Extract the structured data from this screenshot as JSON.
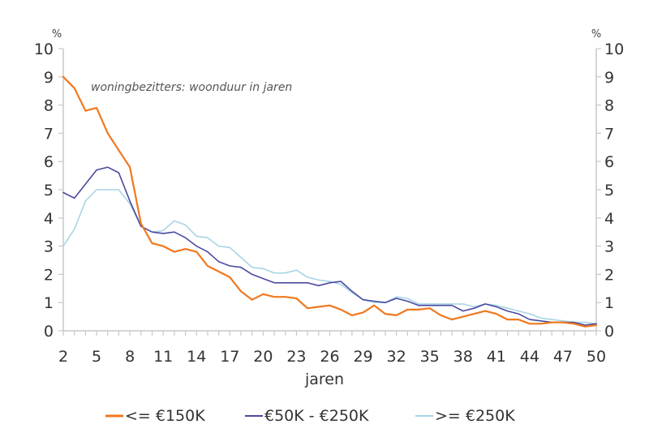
{
  "chart_data": {
    "type": "line",
    "annotation": "woningbezitters: woonduur in jaren",
    "xlabel": "jaren",
    "y_unit_left": "%",
    "y_unit_right": "%",
    "ylim": [
      0,
      10
    ],
    "xlim": [
      2,
      50
    ],
    "y_ticks": [
      0,
      1,
      2,
      3,
      4,
      5,
      6,
      7,
      8,
      9,
      10
    ],
    "x_ticks": [
      2,
      5,
      8,
      11,
      14,
      17,
      20,
      23,
      26,
      29,
      32,
      35,
      38,
      41,
      44,
      47,
      50
    ],
    "grid": false,
    "legend_position": "bottom",
    "x": [
      2,
      3,
      4,
      5,
      6,
      7,
      8,
      9,
      10,
      11,
      12,
      13,
      14,
      15,
      16,
      17,
      18,
      19,
      20,
      21,
      22,
      23,
      24,
      25,
      26,
      27,
      28,
      29,
      30,
      31,
      32,
      33,
      34,
      35,
      36,
      37,
      38,
      39,
      40,
      41,
      42,
      43,
      44,
      45,
      46,
      47,
      48,
      49,
      50
    ],
    "series": [
      {
        "name": "<= €150K",
        "color": "#f0781e",
        "values": [
          9.0,
          8.6,
          7.8,
          7.9,
          7.0,
          6.4,
          5.8,
          3.8,
          3.1,
          3.0,
          2.8,
          2.9,
          2.8,
          2.3,
          2.1,
          1.9,
          1.4,
          1.1,
          1.3,
          1.2,
          1.2,
          1.15,
          0.8,
          0.85,
          0.9,
          0.75,
          0.55,
          0.65,
          0.9,
          0.6,
          0.55,
          0.75,
          0.75,
          0.8,
          0.55,
          0.4,
          0.5,
          0.6,
          0.7,
          0.6,
          0.4,
          0.4,
          0.25,
          0.25,
          0.3,
          0.3,
          0.25,
          0.15,
          0.2
        ]
      },
      {
        "name": "€50K - €250K",
        "color": "#4a4aa0",
        "values": [
          4.9,
          4.7,
          5.2,
          5.7,
          5.8,
          5.6,
          4.6,
          3.7,
          3.5,
          3.45,
          3.5,
          3.3,
          3.0,
          2.8,
          2.45,
          2.3,
          2.25,
          2.0,
          1.85,
          1.7,
          1.7,
          1.7,
          1.7,
          1.6,
          1.7,
          1.75,
          1.4,
          1.1,
          1.05,
          1.0,
          1.15,
          1.05,
          0.9,
          0.9,
          0.9,
          0.9,
          0.7,
          0.8,
          0.95,
          0.85,
          0.7,
          0.6,
          0.4,
          0.35,
          0.3,
          0.3,
          0.3,
          0.2,
          0.25
        ]
      },
      {
        "name": ">= €250K",
        "color": "#a9d4e6",
        "values": [
          3.0,
          3.6,
          4.6,
          5.0,
          5.0,
          5.0,
          4.5,
          3.7,
          3.5,
          3.55,
          3.9,
          3.75,
          3.35,
          3.3,
          3.0,
          2.95,
          2.6,
          2.25,
          2.2,
          2.05,
          2.05,
          2.15,
          1.9,
          1.8,
          1.75,
          1.65,
          1.35,
          1.1,
          1.0,
          1.0,
          1.2,
          1.15,
          0.95,
          0.95,
          0.95,
          0.95,
          0.95,
          0.85,
          0.95,
          0.9,
          0.8,
          0.7,
          0.6,
          0.45,
          0.4,
          0.35,
          0.3,
          0.3,
          0.25
        ]
      }
    ]
  }
}
